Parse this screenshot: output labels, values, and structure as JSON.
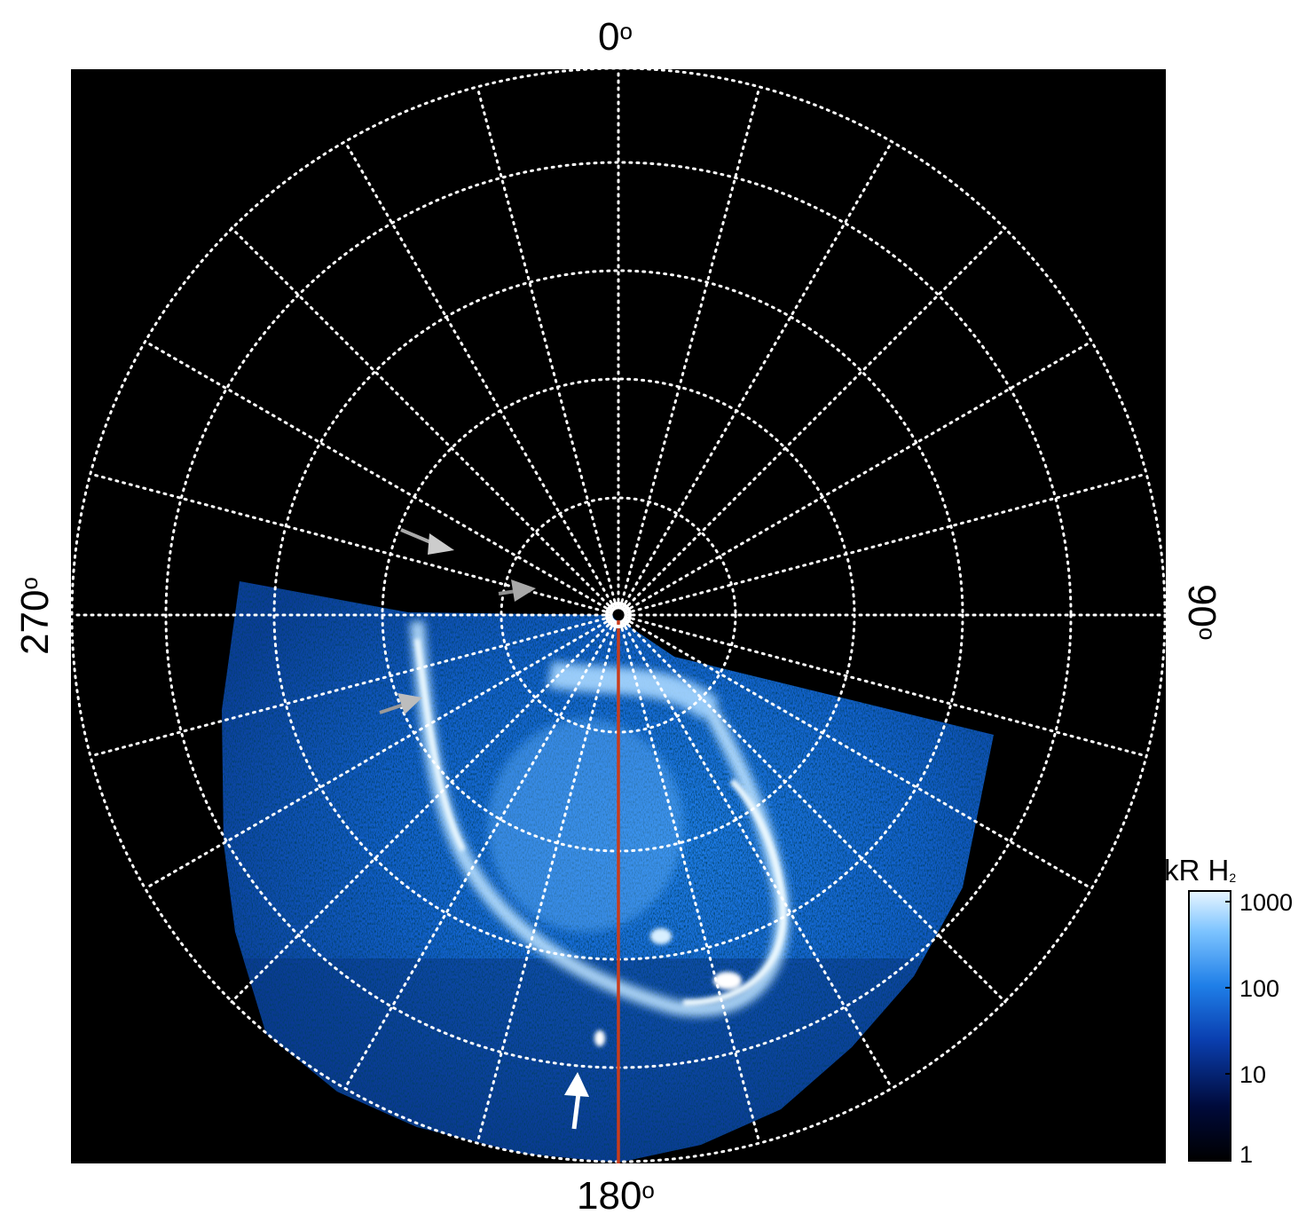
{
  "axes": {
    "top_label": "0",
    "bottom_label": "180",
    "left_label": "270",
    "right_label": "90",
    "degree_symbol": "o"
  },
  "colorbar": {
    "title_main": "kR H",
    "title_sub": "2",
    "tick_labels": [
      "1000",
      "100",
      "10",
      "1"
    ],
    "scale": "log",
    "range": [
      1,
      1000
    ],
    "colors": [
      "#000000",
      "#000a3a",
      "#0a3fb0",
      "#1f7fe8",
      "#7cc3ff",
      "#e8f6ff"
    ]
  },
  "grid": {
    "style": "dotted",
    "color": "#ffffff"
  },
  "colors": {
    "background": "#000000",
    "meridian_line": "#c83c1c",
    "arrow_white": "#ffffff",
    "arrow_gray": "#aaaaaa"
  },
  "annotations": {
    "arrows": [
      {
        "color": "gray",
        "pointing": "down-right"
      },
      {
        "color": "gray",
        "pointing": "right"
      },
      {
        "color": "gray",
        "pointing": "right"
      },
      {
        "color": "white",
        "pointing": "up"
      }
    ]
  }
}
